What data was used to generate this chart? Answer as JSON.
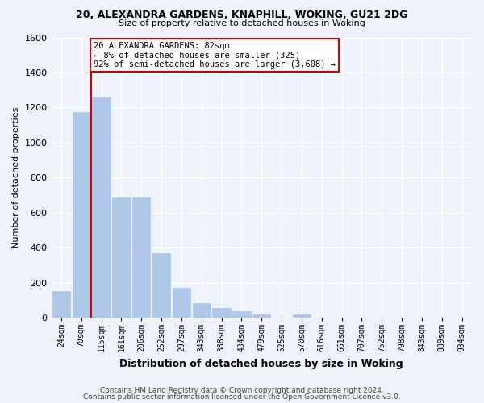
{
  "title1": "20, ALEXANDRA GARDENS, KNAPHILL, WOKING, GU21 2DG",
  "title2": "Size of property relative to detached houses in Woking",
  "xlabel": "Distribution of detached houses by size in Woking",
  "ylabel": "Number of detached properties",
  "categories": [
    "24sqm",
    "70sqm",
    "115sqm",
    "161sqm",
    "206sqm",
    "252sqm",
    "297sqm",
    "343sqm",
    "388sqm",
    "434sqm",
    "479sqm",
    "525sqm",
    "570sqm",
    "616sqm",
    "661sqm",
    "707sqm",
    "752sqm",
    "798sqm",
    "843sqm",
    "889sqm",
    "934sqm"
  ],
  "values": [
    150,
    1175,
    1260,
    685,
    685,
    370,
    170,
    85,
    55,
    35,
    20,
    0,
    20,
    0,
    0,
    0,
    0,
    0,
    0,
    0,
    0
  ],
  "bar_color": "#aec6e8",
  "bar_edge_color": "#aec6e8",
  "background_color": "#eef2f9",
  "grid_color": "#ffffff",
  "annotation_line1": "20 ALEXANDRA GARDENS: 82sqm",
  "annotation_line2": "← 8% of detached houses are smaller (325)",
  "annotation_line3": "92% of semi-detached houses are larger (3,608) →",
  "annotation_box_color": "#ffffff",
  "annotation_box_edge_color": "#cc0000",
  "vline_color": "#cc0000",
  "vline_x": 1.5,
  "ylim": [
    0,
    1600
  ],
  "yticks": [
    0,
    200,
    400,
    600,
    800,
    1000,
    1200,
    1400,
    1600
  ],
  "footer1": "Contains HM Land Registry data © Crown copyright and database right 2024.",
  "footer2": "Contains public sector information licensed under the Open Government Licence v3.0."
}
